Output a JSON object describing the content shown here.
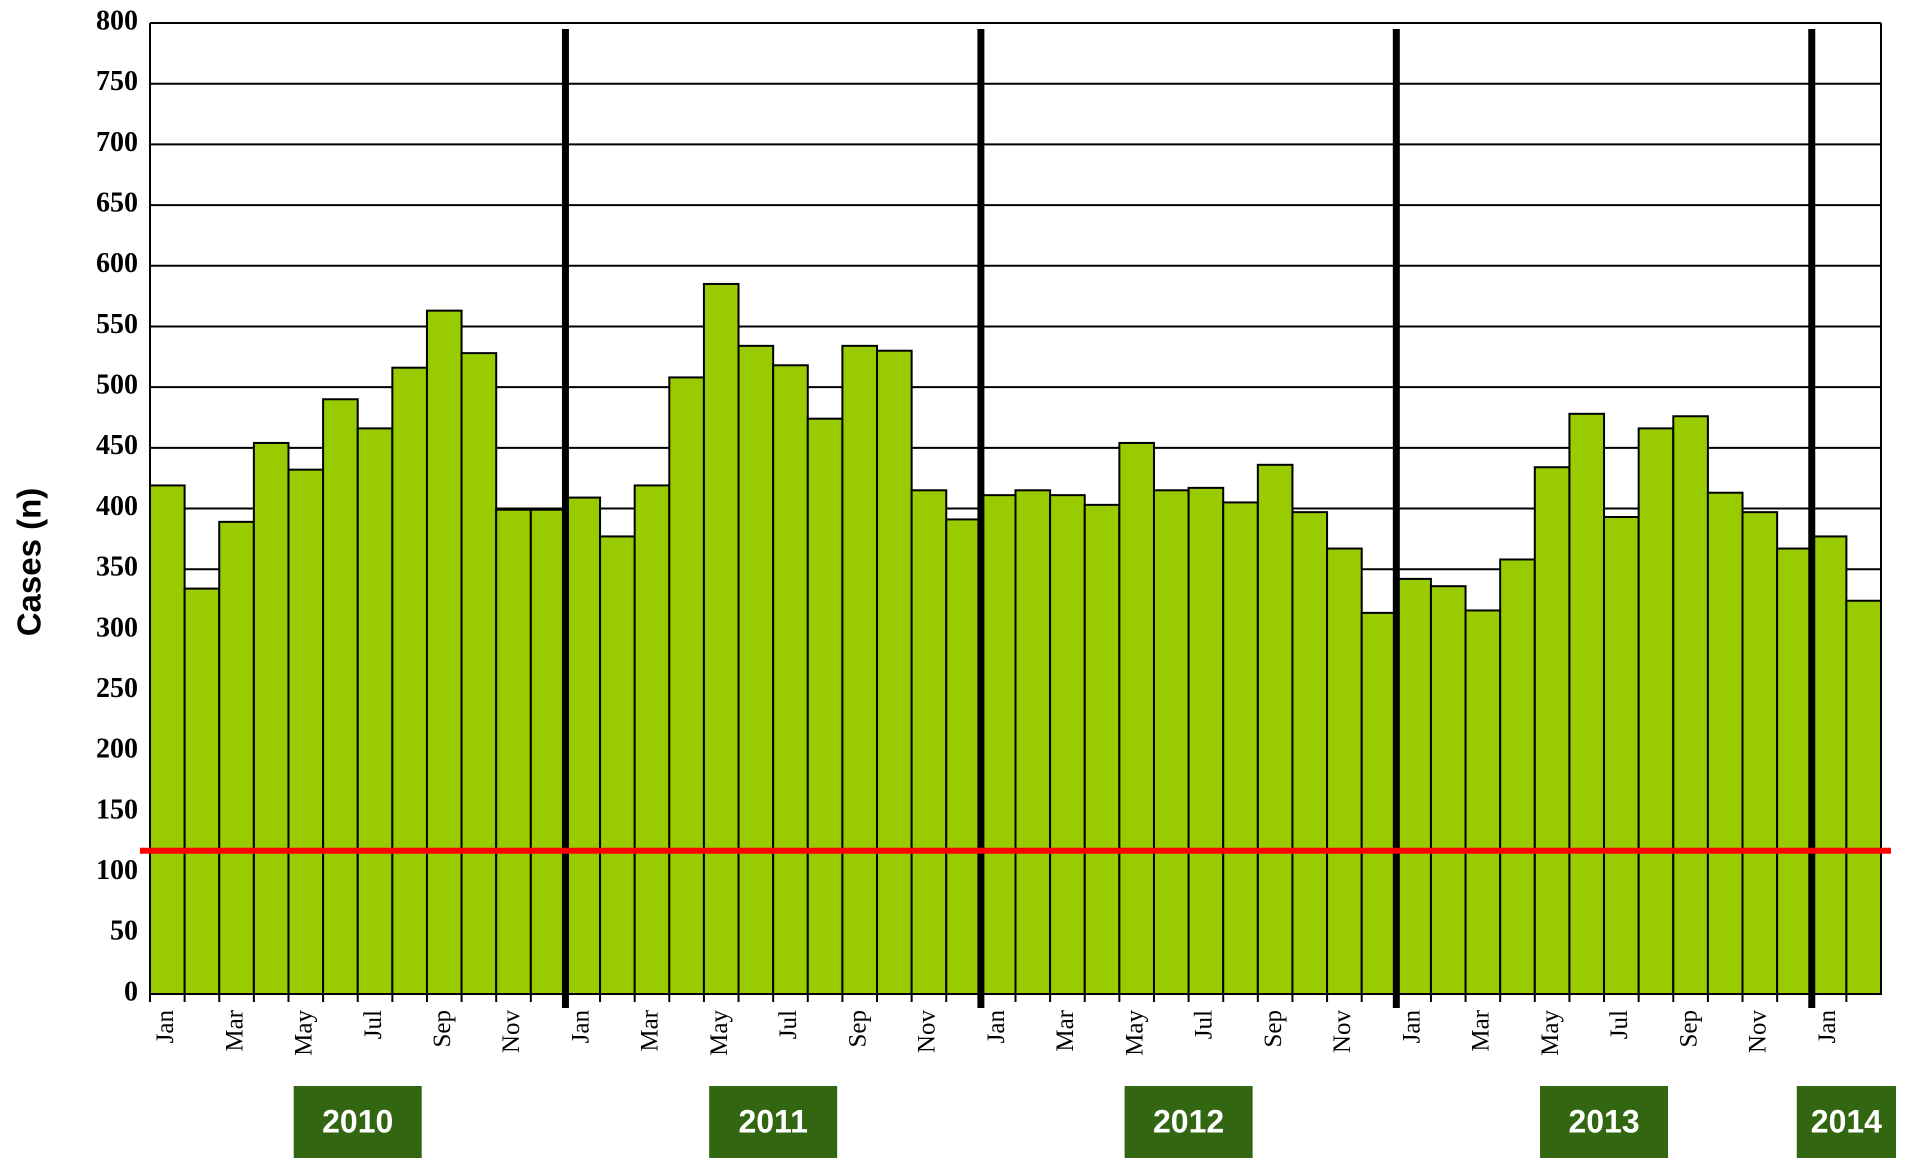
{
  "chart_data": {
    "type": "bar",
    "y_label": "Cases (n)",
    "categories": [
      "Jan",
      null,
      "Mar",
      null,
      "May",
      null,
      "Jul",
      null,
      "Sep",
      null,
      "Nov",
      null,
      "Jan",
      null,
      "Mar",
      null,
      "May",
      null,
      "Jul",
      null,
      "Sep",
      null,
      "Nov",
      null,
      "Jan",
      null,
      "Mar",
      null,
      "May",
      null,
      "Jul",
      null,
      "Sep",
      null,
      "Nov",
      null,
      "Jan",
      null,
      "Mar",
      null,
      "May",
      null,
      "Jul",
      null,
      "Sep",
      null,
      "Nov",
      null,
      "Jan",
      null
    ],
    "values": [
      419,
      334,
      389,
      454,
      432,
      490,
      466,
      516,
      563,
      528,
      399,
      399,
      409,
      377,
      419,
      508,
      585,
      534,
      518,
      474,
      534,
      530,
      415,
      391,
      411,
      415,
      411,
      403,
      454,
      415,
      417,
      405,
      436,
      397,
      367,
      314,
      342,
      336,
      316,
      358,
      434,
      478,
      393,
      466,
      476,
      413,
      397,
      367,
      377,
      324
    ],
    "color": "#99cc00",
    "years": [
      "2010",
      "2011",
      "2012",
      "2013",
      "2014"
    ],
    "year_color": "#336611",
    "reference_line": {
      "value": 118,
      "color": "#ff0000"
    },
    "ylim": [
      0,
      800
    ],
    "yticks": [
      0,
      50,
      100,
      150,
      200,
      250,
      300,
      350,
      400,
      450,
      500,
      550,
      600,
      650,
      700,
      750,
      800
    ],
    "grid": true
  }
}
